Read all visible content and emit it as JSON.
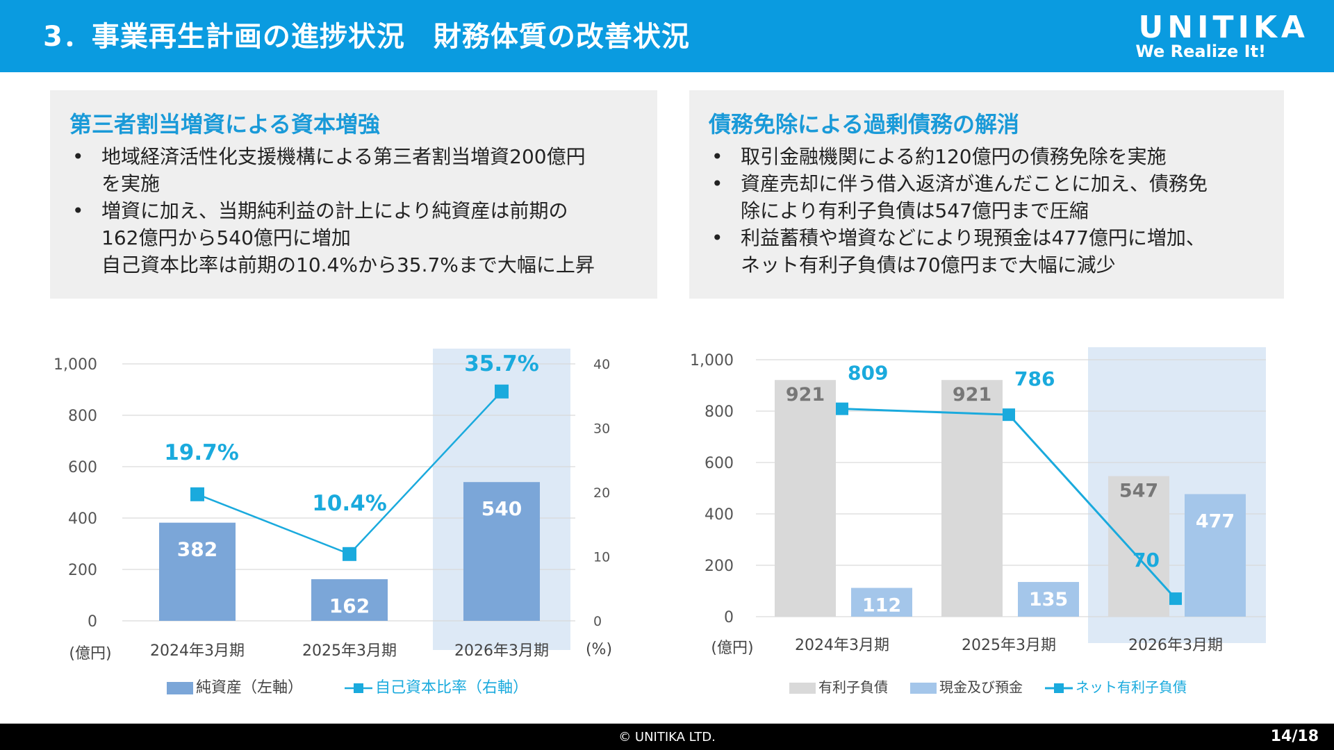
{
  "header": {
    "title": "3．事業再生計画の進捗状況　財務体質の改善状況",
    "logo_main": "UNITIKA",
    "logo_sub": "We Realize It!"
  },
  "left_panel": {
    "title": "第三者割当増資による資本増強",
    "bullets": [
      "地域経済活性化支援機構による第三者割当増資200億円\nを実施",
      "増資に加え、当期純利益の計上により純資産は前期の\n162億円から540億円に増加\n自己資本比率は前期の10.4%から35.7%まで大幅に上昇"
    ]
  },
  "right_panel": {
    "title": "債務免除による過剰債務の解消",
    "bullets": [
      "取引金融機関による約120億円の債務免除を実施",
      "資産売却に伴う借入返済が進んだことに加え、債務免\n除により有利子負債は547億円まで圧縮",
      "利益蓄積や増資などにより現預金は477億円に増加、\nネット有利子負債は70億円まで大幅に減少"
    ]
  },
  "bullet_symbol": "•",
  "chart_data": [
    {
      "type": "bar",
      "categories": [
        "2024年3月期",
        "2025年3月期",
        "2026年3月期"
      ],
      "highlight_category": "2026年3月期",
      "y_left_ticks": [
        "0",
        "200",
        "400",
        "600",
        "800",
        "1,000"
      ],
      "y_right_ticks": [
        "0",
        "10",
        "20",
        "30",
        "40"
      ],
      "ylim_left": [
        0,
        1000
      ],
      "ylim_right": [
        0,
        40
      ],
      "y_left_unit": "(億円)",
      "y_right_unit": "(%)",
      "bar_labels": [
        "382",
        "162",
        "540"
      ],
      "line_labels": [
        "19.7%",
        "10.4%",
        "35.7%"
      ],
      "series": [
        {
          "name": "純資産（左軸）",
          "type": "bar",
          "axis": "left",
          "values": [
            382,
            162,
            540
          ],
          "color": "#7ba6d8"
        },
        {
          "name": "自己資本比率（右軸）",
          "type": "line",
          "axis": "right",
          "values": [
            19.7,
            10.4,
            35.7
          ],
          "color": "#1aaadd"
        }
      ],
      "grid": true
    },
    {
      "type": "bar",
      "categories": [
        "2024年3月期",
        "2025年3月期",
        "2026年3月期"
      ],
      "highlight_category": "2026年3月期",
      "y_ticks": [
        "0",
        "200",
        "400",
        "600",
        "800",
        "1,000"
      ],
      "ylim": [
        0,
        1000
      ],
      "y_unit": "(億円)",
      "debt_labels": [
        "921",
        "921",
        "547"
      ],
      "cash_labels": [
        "112",
        "135",
        "477"
      ],
      "net_labels": [
        "809",
        "786",
        "70"
      ],
      "series": [
        {
          "name": "有利子負債",
          "type": "bar",
          "values": [
            921,
            921,
            547
          ],
          "color": "#d9d9d9"
        },
        {
          "name": "現金及び預金",
          "type": "bar",
          "values": [
            112,
            135,
            477
          ],
          "color": "#a4c6ea"
        },
        {
          "name": "ネット有利子負債",
          "type": "line",
          "values": [
            809,
            786,
            70
          ],
          "color": "#1aaadd"
        }
      ],
      "grid": true
    }
  ],
  "footer": {
    "copyright": "© UNITIKA LTD.",
    "page": "14/18"
  }
}
